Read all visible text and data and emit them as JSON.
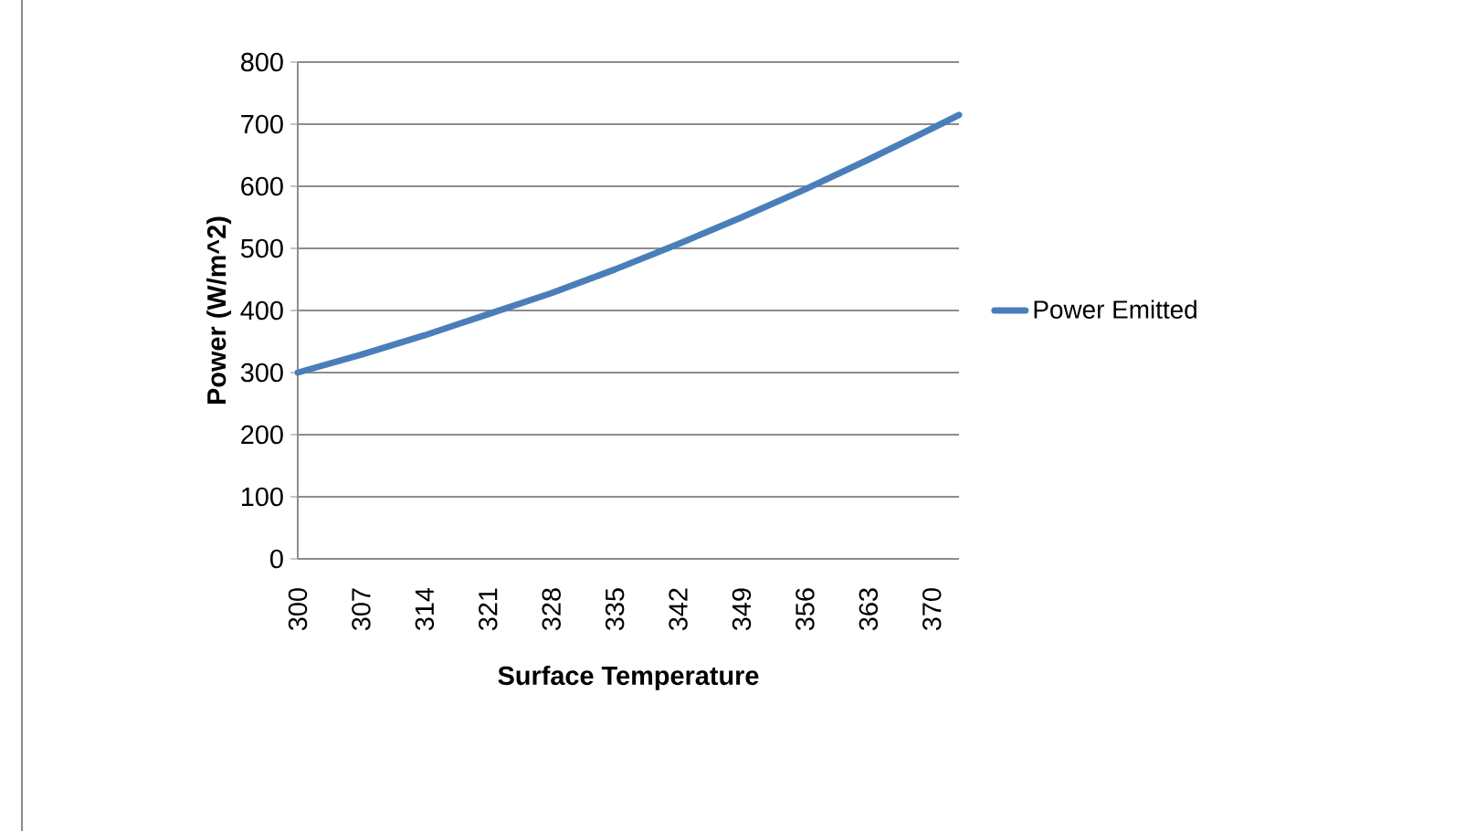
{
  "chart_data": {
    "type": "line",
    "xlabel": "Surface Temperature",
    "ylabel": "Power (W/m^2)",
    "x": [
      300,
      307,
      314,
      321,
      328,
      335,
      342,
      349,
      356,
      363,
      370,
      373
    ],
    "series": [
      {
        "name": "Power Emitted",
        "color": "#4a7ebb",
        "values": [
          300,
          329,
          360,
          394,
          428,
          466,
          507,
          550,
          595,
          643,
          693,
          715
        ]
      }
    ],
    "xlim": [
      300,
      373
    ],
    "xticks": [
      300,
      307,
      314,
      321,
      328,
      335,
      342,
      349,
      356,
      363,
      370
    ],
    "ylim": [
      0,
      800
    ],
    "yticks": [
      0,
      100,
      200,
      300,
      400,
      500,
      600,
      700,
      800
    ],
    "grid": "y",
    "legend": "right",
    "marker": "none",
    "line_style": "solid"
  }
}
